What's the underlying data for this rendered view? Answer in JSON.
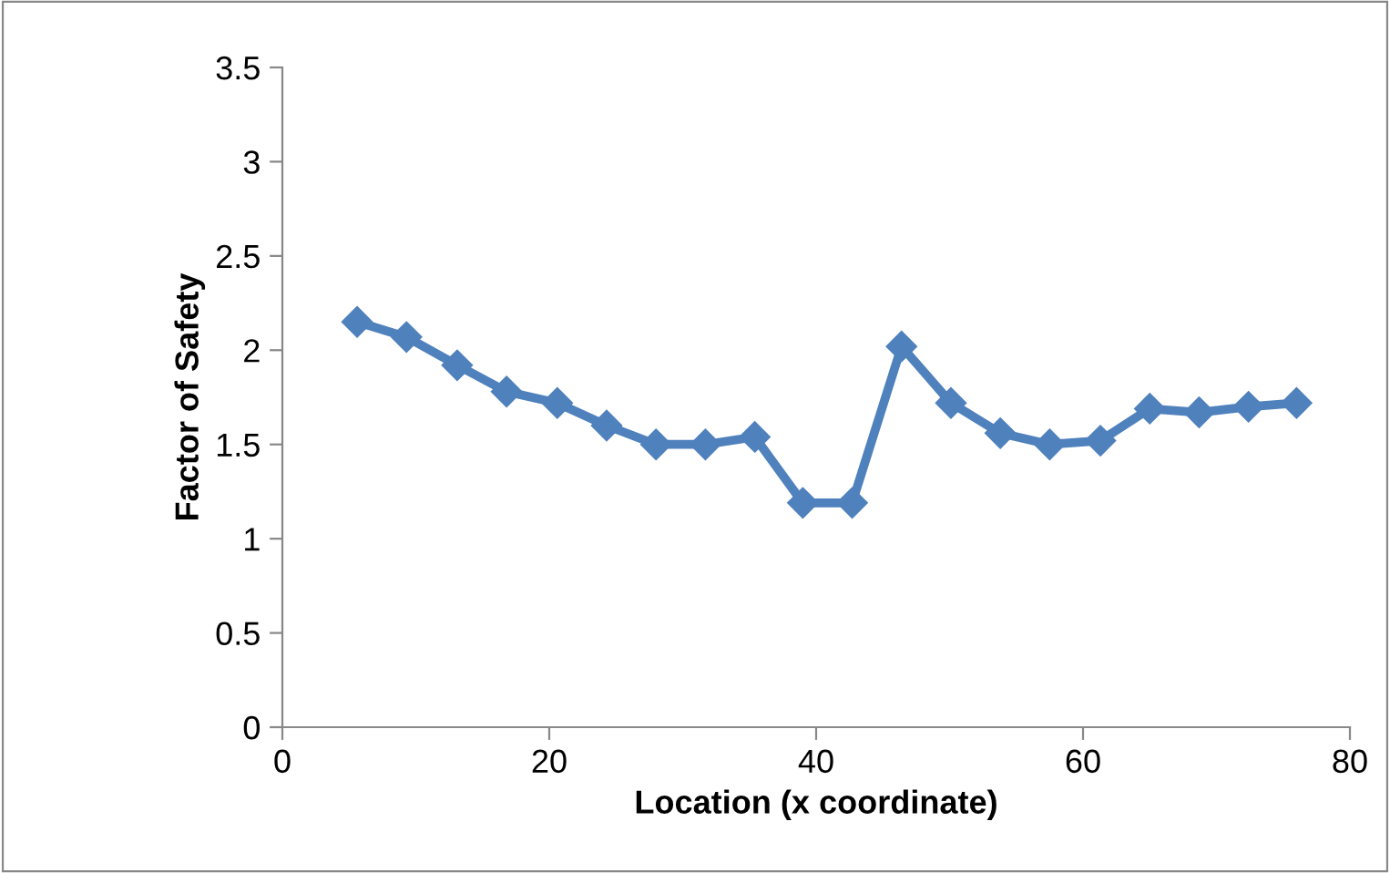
{
  "chart_data": {
    "type": "line",
    "xlabel": "Location (x coordinate)",
    "ylabel": "Factor of Safety",
    "x": [
      5.6,
      9.3,
      13.1,
      16.8,
      20.6,
      24.3,
      28.0,
      31.7,
      35.4,
      39.0,
      42.7,
      46.4,
      50.1,
      53.8,
      57.5,
      61.3,
      65.0,
      68.7,
      72.4,
      76.0
    ],
    "series": [
      {
        "color": "#4f81bd",
        "values": [
          2.15,
          2.07,
          1.92,
          1.78,
          1.72,
          1.6,
          1.5,
          1.5,
          1.54,
          1.19,
          1.19,
          2.02,
          1.72,
          1.56,
          1.5,
          1.52,
          1.69,
          1.67,
          1.7,
          1.72
        ]
      }
    ],
    "xlim": [
      0,
      80
    ],
    "xticks": [
      0,
      20,
      40,
      60,
      80
    ],
    "ylim": [
      0,
      3.5
    ],
    "yticks": [
      0,
      0.5,
      1,
      1.5,
      2,
      2.5,
      3,
      3.5
    ],
    "grid": false,
    "legend": false,
    "marker": "diamond",
    "line_style": "solid"
  }
}
